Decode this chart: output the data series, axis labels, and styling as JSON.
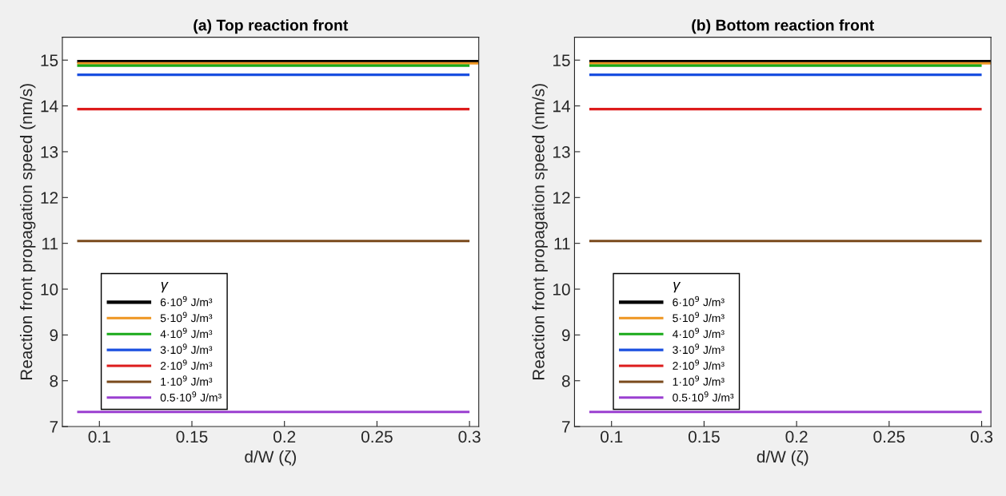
{
  "chart_data": [
    {
      "type": "line",
      "title": "(a) Top reaction front",
      "xlabel": "d/W (ζ)",
      "ylabel": "Reaction front propagation speed (nm/s)",
      "legend_title": "γ",
      "legend": "bottom left",
      "grid": false,
      "marker": "none",
      "line_style": "solid",
      "xlim": [
        0.08,
        0.305
      ],
      "xticks": [
        0.1,
        0.15,
        0.2,
        0.25,
        0.3
      ],
      "ylim": [
        7,
        15.5
      ],
      "yticks": [
        7,
        8,
        9,
        10,
        11,
        12,
        13,
        14,
        15
      ],
      "series": [
        {
          "name": "6·10$^{9}$ J/m³",
          "color": "#000000",
          "x": [
            0.088,
            0.305
          ],
          "values": [
            14.97,
            14.97
          ]
        },
        {
          "name": "5·10$^{9}$ J/m³",
          "color": "#ee9520",
          "x": [
            0.088,
            0.305
          ],
          "values": [
            14.93,
            14.93
          ]
        },
        {
          "name": "4·10$^{9}$ J/m³",
          "color": "#1aaa1a",
          "x": [
            0.088,
            0.3
          ],
          "values": [
            14.88,
            14.88
          ]
        },
        {
          "name": "3·10$^{9}$ J/m³",
          "color": "#1a4fe0",
          "x": [
            0.088,
            0.3
          ],
          "values": [
            14.68,
            14.68
          ]
        },
        {
          "name": "2·10$^{9}$ J/m³",
          "color": "#dd1c1c",
          "x": [
            0.088,
            0.3
          ],
          "values": [
            13.93,
            13.93
          ]
        },
        {
          "name": "1·10$^{9}$ J/m³",
          "color": "#7a4a1c",
          "x": [
            0.088,
            0.3
          ],
          "values": [
            11.05,
            11.05
          ]
        },
        {
          "name": "0.5·10$^{9}$ J/m³",
          "color": "#9a3fd0",
          "x": [
            0.088,
            0.3
          ],
          "values": [
            7.32,
            7.32
          ]
        }
      ]
    },
    {
      "type": "line",
      "title": "(b) Bottom reaction front",
      "xlabel": "d/W (ζ)",
      "ylabel": "Reaction front propagation speed (nm/s)",
      "legend_title": "γ",
      "legend": "bottom left",
      "grid": false,
      "marker": "none",
      "line_style": "solid",
      "xlim": [
        0.08,
        0.305
      ],
      "xticks": [
        0.1,
        0.15,
        0.2,
        0.25,
        0.3
      ],
      "ylim": [
        7,
        15.5
      ],
      "yticks": [
        7,
        8,
        9,
        10,
        11,
        12,
        13,
        14,
        15
      ],
      "series": [
        {
          "name": "6·10$^{9}$ J/m³",
          "color": "#000000",
          "x": [
            0.088,
            0.305
          ],
          "values": [
            14.97,
            14.97
          ]
        },
        {
          "name": "5·10$^{9}$ J/m³",
          "color": "#ee9520",
          "x": [
            0.088,
            0.305
          ],
          "values": [
            14.93,
            14.93
          ]
        },
        {
          "name": "4·10$^{9}$ J/m³",
          "color": "#1aaa1a",
          "x": [
            0.088,
            0.3
          ],
          "values": [
            14.88,
            14.88
          ]
        },
        {
          "name": "3·10$^{9}$ J/m³",
          "color": "#1a4fe0",
          "x": [
            0.088,
            0.3
          ],
          "values": [
            14.68,
            14.68
          ]
        },
        {
          "name": "2·10$^{9}$ J/m³",
          "color": "#dd1c1c",
          "x": [
            0.088,
            0.3
          ],
          "values": [
            13.93,
            13.93
          ]
        },
        {
          "name": "1·10$^{9}$ J/m³",
          "color": "#7a4a1c",
          "x": [
            0.088,
            0.3
          ],
          "values": [
            11.05,
            11.05
          ]
        },
        {
          "name": "0.5·10$^{9}$ J/m³",
          "color": "#9a3fd0",
          "x": [
            0.088,
            0.3
          ],
          "values": [
            7.32,
            7.32
          ]
        }
      ]
    }
  ]
}
